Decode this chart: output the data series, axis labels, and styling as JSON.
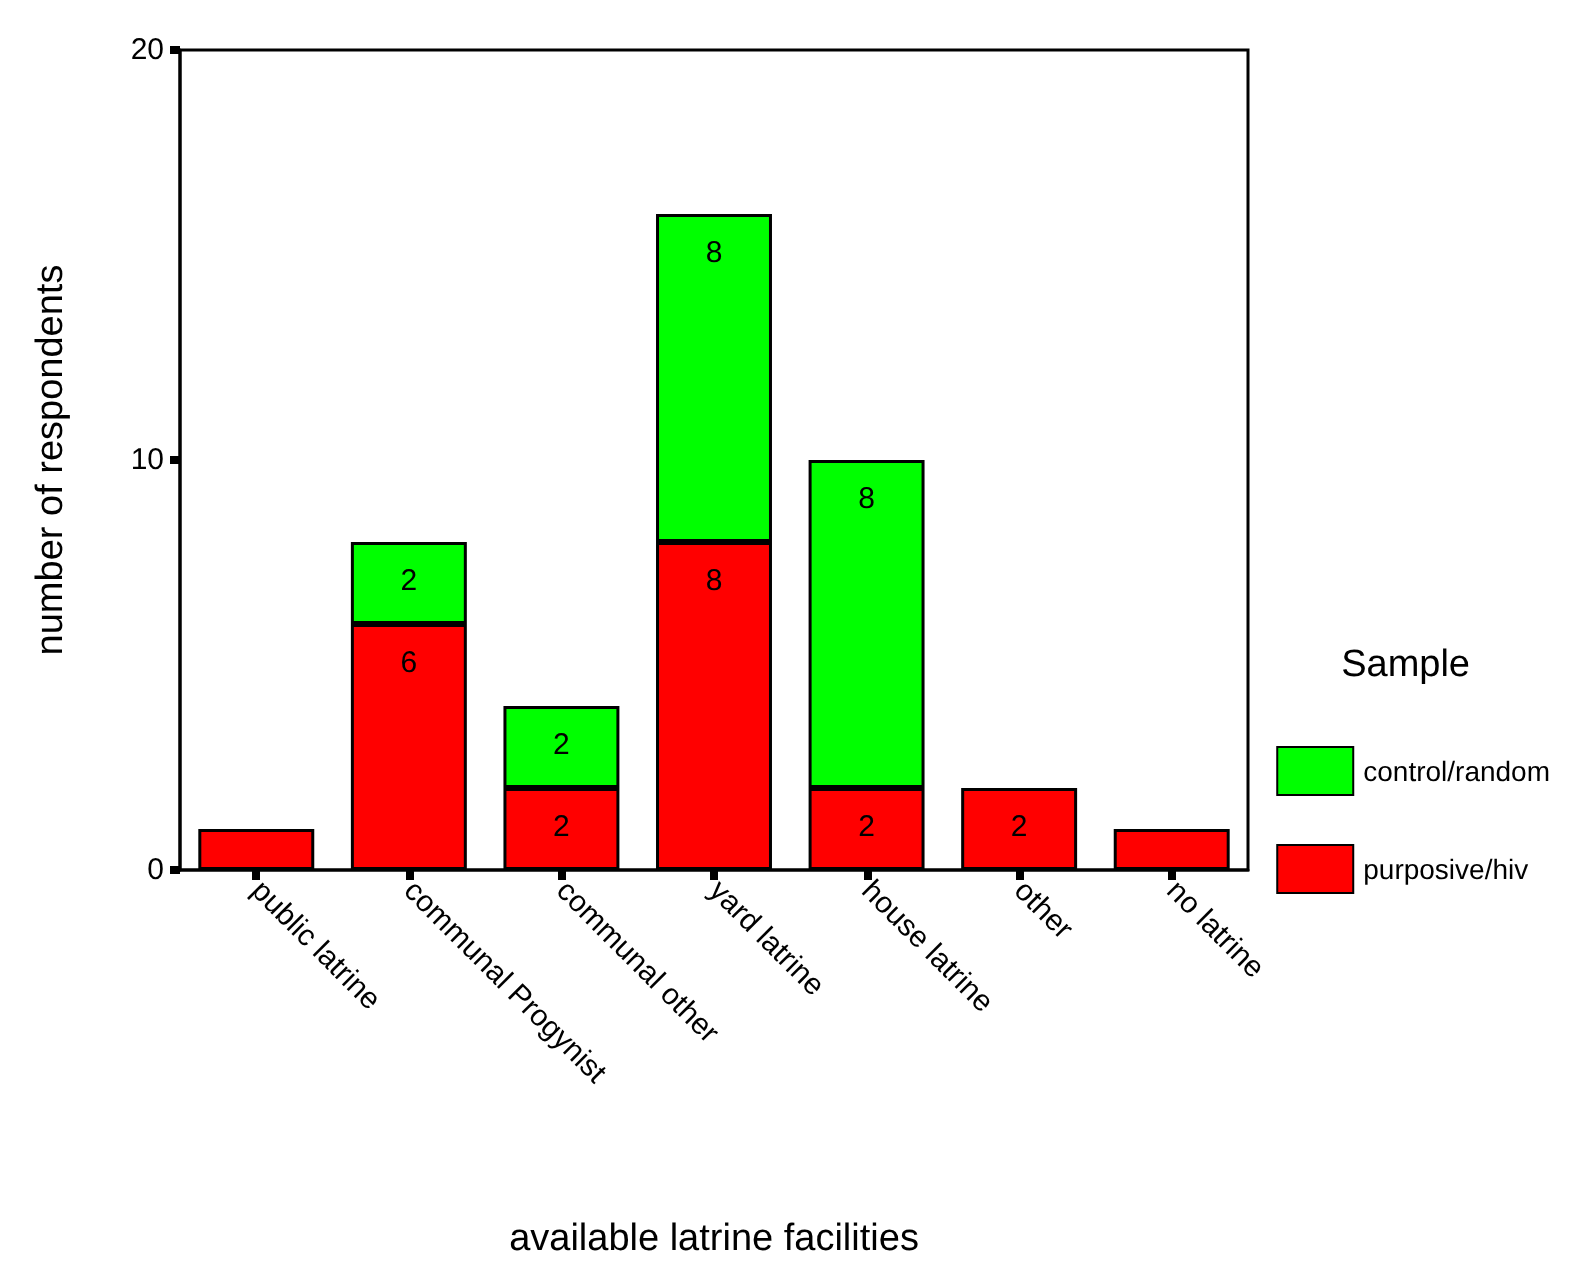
{
  "chart_data": {
    "type": "bar",
    "stacked": true,
    "xlabel": "available latrine facilities",
    "ylabel": "number of respondents",
    "legend_title": "Sample",
    "legend": "right",
    "grid": false,
    "categories": [
      "public latrine",
      "communal Progynist",
      "communal other",
      "yard latrine",
      "house latrine",
      "other",
      "no latrine"
    ],
    "ylim": [
      0,
      20
    ],
    "yticks": [
      0,
      10,
      20
    ],
    "series": [
      {
        "name": "purposive/hiv",
        "color": "#ff0000",
        "values": [
          1,
          6,
          2,
          8,
          2,
          2,
          1
        ],
        "value_labels": [
          null,
          "6",
          "2",
          "8",
          "2",
          "2",
          null
        ]
      },
      {
        "name": "control/random",
        "color": "#00ff00",
        "values": [
          null,
          2,
          2,
          8,
          8,
          null,
          null
        ],
        "value_labels": [
          null,
          "2",
          "2",
          "8",
          "8",
          null,
          null
        ]
      }
    ]
  }
}
